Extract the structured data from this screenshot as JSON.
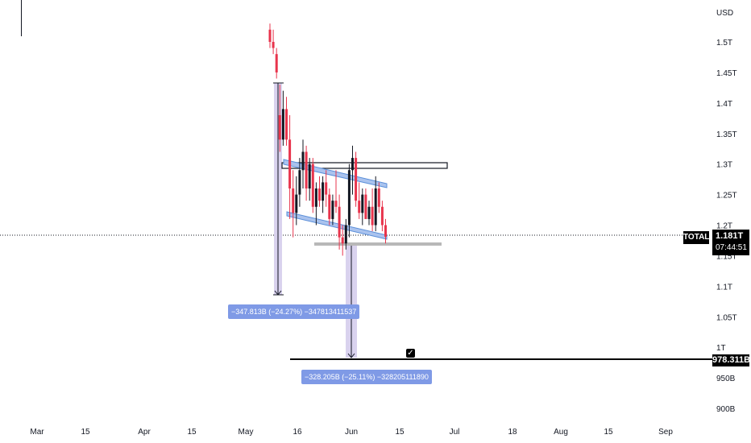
{
  "chart": {
    "symbol": "TOTAL",
    "currency": "USD",
    "last_price": "1.181T",
    "countdown": "07:44:51",
    "horizontal_level": "978.311B",
    "price_axis": [
      "1.5T",
      "1.45T",
      "1.4T",
      "1.35T",
      "1.3T",
      "1.25T",
      "1.2T",
      "1.15T",
      "1.1T",
      "1.05T",
      "1T",
      "950B",
      "900B"
    ],
    "time_axis": [
      "Mar",
      "15",
      "Apr",
      "15",
      "May",
      "16",
      "Jun",
      "15",
      "Jul",
      "18",
      "Aug",
      "15",
      "Sep"
    ],
    "measure_1": "−347.813B (−24.27%) −347813411537",
    "measure_2": "−328.205B (−25.11%) −328205111890",
    "colors": {
      "up": "#131722",
      "down": "#e8344c",
      "channel": "#5b8fd9",
      "measure": "#7f9ae6",
      "level": "#000000"
    }
  },
  "chart_data": {
    "type": "candlestick",
    "ylabel": "USD",
    "ylim": [
      880000000000,
      1520000000000
    ],
    "candles": [
      {
        "o": 1.52,
        "h": 1.53,
        "l": 1.49,
        "c": 1.5
      },
      {
        "o": 1.5,
        "h": 1.52,
        "l": 1.48,
        "c": 1.49
      },
      {
        "o": 1.48,
        "h": 1.49,
        "l": 1.44,
        "c": 1.45
      },
      {
        "o": 1.38,
        "h": 1.43,
        "l": 1.32,
        "c": 1.34
      },
      {
        "o": 1.34,
        "h": 1.42,
        "l": 1.33,
        "c": 1.39
      },
      {
        "o": 1.39,
        "h": 1.41,
        "l": 1.33,
        "c": 1.34
      },
      {
        "o": 1.34,
        "h": 1.38,
        "l": 1.21,
        "c": 1.26
      },
      {
        "o": 1.26,
        "h": 1.29,
        "l": 1.18,
        "c": 1.22
      },
      {
        "o": 1.22,
        "h": 1.28,
        "l": 1.2,
        "c": 1.25
      },
      {
        "o": 1.25,
        "h": 1.31,
        "l": 1.23,
        "c": 1.29
      },
      {
        "o": 1.29,
        "h": 1.34,
        "l": 1.26,
        "c": 1.32
      },
      {
        "o": 1.32,
        "h": 1.33,
        "l": 1.24,
        "c": 1.26
      },
      {
        "o": 1.26,
        "h": 1.31,
        "l": 1.24,
        "c": 1.3
      },
      {
        "o": 1.3,
        "h": 1.31,
        "l": 1.22,
        "c": 1.23
      },
      {
        "o": 1.23,
        "h": 1.27,
        "l": 1.2,
        "c": 1.26
      },
      {
        "o": 1.26,
        "h": 1.28,
        "l": 1.23,
        "c": 1.24
      },
      {
        "o": 1.24,
        "h": 1.28,
        "l": 1.22,
        "c": 1.27
      },
      {
        "o": 1.27,
        "h": 1.29,
        "l": 1.23,
        "c": 1.25
      },
      {
        "o": 1.25,
        "h": 1.26,
        "l": 1.2,
        "c": 1.21
      },
      {
        "o": 1.21,
        "h": 1.25,
        "l": 1.2,
        "c": 1.24
      },
      {
        "o": 1.24,
        "h": 1.29,
        "l": 1.22,
        "c": 1.23
      },
      {
        "o": 1.23,
        "h": 1.25,
        "l": 1.16,
        "c": 1.18
      },
      {
        "o": 1.18,
        "h": 1.2,
        "l": 1.15,
        "c": 1.17
      },
      {
        "o": 1.17,
        "h": 1.21,
        "l": 1.16,
        "c": 1.2
      },
      {
        "o": 1.2,
        "h": 1.3,
        "l": 1.18,
        "c": 1.29
      },
      {
        "o": 1.29,
        "h": 1.33,
        "l": 1.25,
        "c": 1.31
      },
      {
        "o": 1.31,
        "h": 1.32,
        "l": 1.23,
        "c": 1.24
      },
      {
        "o": 1.24,
        "h": 1.27,
        "l": 1.21,
        "c": 1.22
      },
      {
        "o": 1.22,
        "h": 1.26,
        "l": 1.2,
        "c": 1.25
      },
      {
        "o": 1.25,
        "h": 1.26,
        "l": 1.21,
        "c": 1.21
      },
      {
        "o": 1.21,
        "h": 1.24,
        "l": 1.2,
        "c": 1.23
      },
      {
        "o": 1.23,
        "h": 1.26,
        "l": 1.19,
        "c": 1.2
      },
      {
        "o": 1.2,
        "h": 1.28,
        "l": 1.19,
        "c": 1.26
      },
      {
        "o": 1.26,
        "h": 1.27,
        "l": 1.22,
        "c": 1.23
      },
      {
        "o": 1.23,
        "h": 1.24,
        "l": 1.19,
        "c": 1.2
      },
      {
        "o": 1.2,
        "h": 1.21,
        "l": 1.17,
        "c": 1.181
      }
    ]
  }
}
